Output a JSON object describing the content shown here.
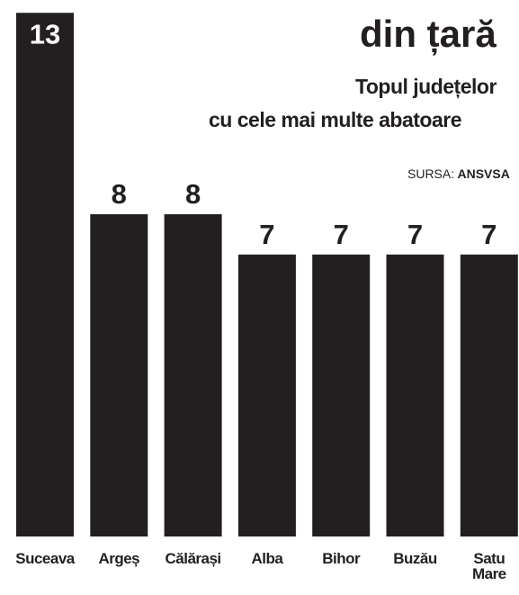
{
  "chart_data": {
    "type": "bar",
    "title": "din țară",
    "subtitle": [
      "Topul județelor",
      "cu cele mai multe abatoare"
    ],
    "source": {
      "label": "SURSA:",
      "name": "ANSVSA"
    },
    "categories": [
      "Suceava",
      "Argeș",
      "Călărași",
      "Alba",
      "Bihor",
      "Buzău",
      "Satu Mare"
    ],
    "values": [
      13,
      8,
      8,
      7,
      7,
      7,
      7
    ],
    "color": "#231f20"
  }
}
